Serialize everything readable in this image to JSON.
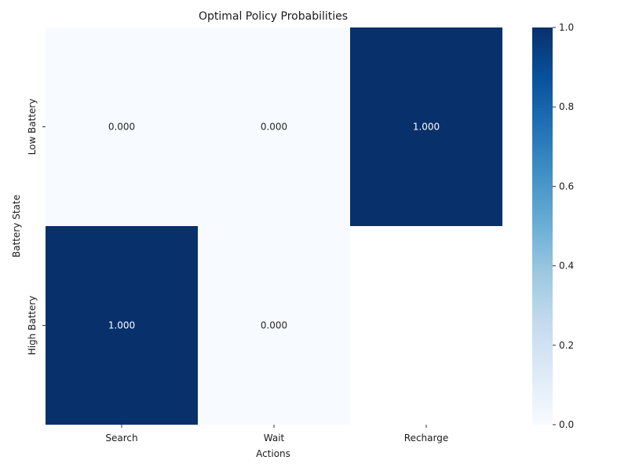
{
  "chart_data": {
    "type": "heatmap",
    "title": "Optimal Policy Probabilities",
    "xlabel": "Actions",
    "ylabel": "Battery State",
    "x_categories": [
      "Search",
      "Wait",
      "Recharge"
    ],
    "y_categories": [
      "Low Battery",
      "High Battery"
    ],
    "values": [
      [
        0.0,
        0.0,
        1.0
      ],
      [
        1.0,
        0.0,
        null
      ]
    ],
    "value_format": "3 decimals",
    "colormap": "Blues",
    "vmin": 0.0,
    "vmax": 1.0,
    "colorbar_ticks": [
      "0.0",
      "0.2",
      "0.4",
      "0.6",
      "0.8",
      "1.0"
    ],
    "grid": false,
    "colors": {
      "low": "#f7fbff",
      "high": "#08306b",
      "text_dark": "#262626",
      "text_light": "#ffffff"
    }
  }
}
